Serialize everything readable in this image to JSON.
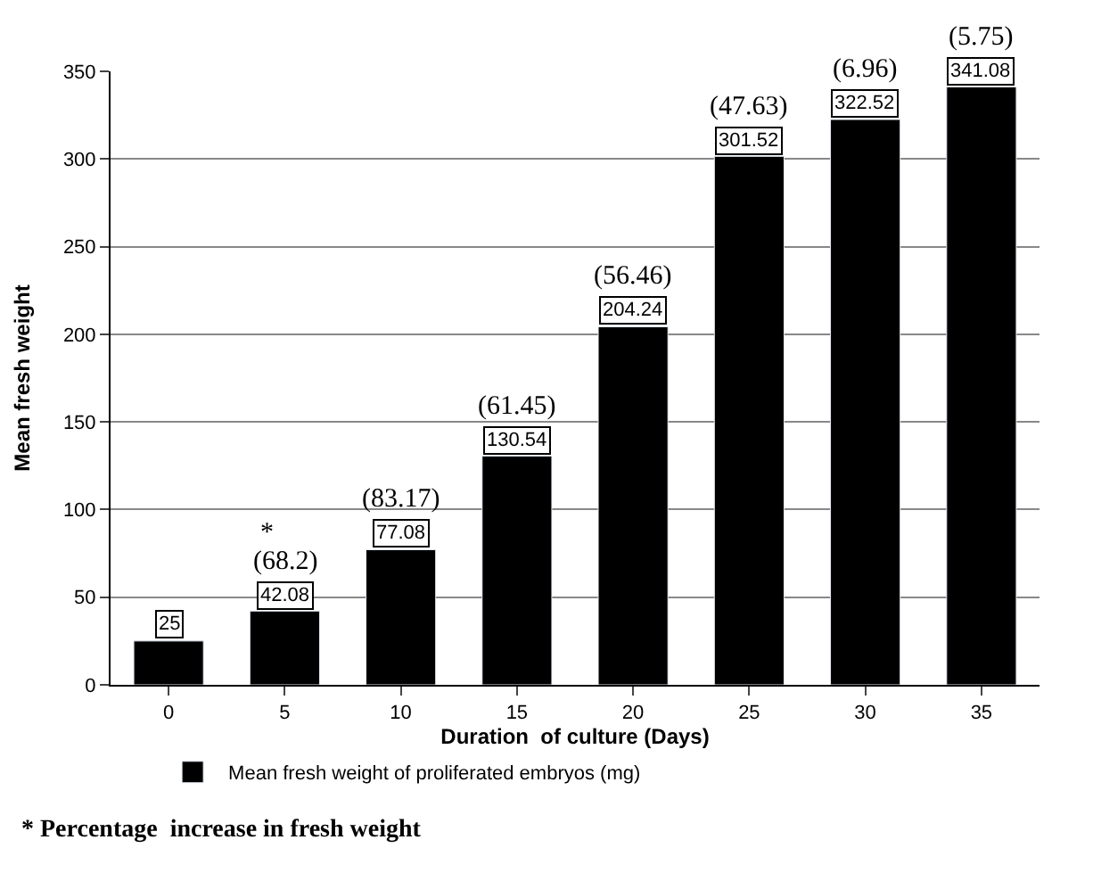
{
  "chart_data": {
    "type": "bar",
    "xlabel": "Duration  of culture (Days)",
    "ylabel": "Mean fresh weight",
    "categories": [
      "0",
      "5",
      "10",
      "15",
      "20",
      "25",
      "30",
      "35"
    ],
    "series": [
      {
        "name": "Mean fresh weight of proliferated embryos (mg)",
        "color": "#000000",
        "values": [
          25,
          42.08,
          77.08,
          130.54,
          204.24,
          301.52,
          322.52,
          341.08
        ]
      }
    ],
    "data_labels": true,
    "ylim": [
      0,
      350
    ],
    "yticks": [
      0,
      50,
      100,
      150,
      200,
      250,
      300,
      350
    ],
    "grid": "y",
    "legend": "bottom",
    "annotations": [
      {
        "text": "*",
        "x": "5",
        "y": 42.08
      },
      {
        "text": "(68.2)",
        "x": "5",
        "y": 42.08
      },
      {
        "text": "(83.17)",
        "x": "10",
        "y": 77.08
      },
      {
        "text": "(61.45)",
        "x": "15",
        "y": 130.54
      },
      {
        "text": "(56.46)",
        "x": "20",
        "y": 204.24
      },
      {
        "text": "(47.63)",
        "x": "25",
        "y": 301.52
      },
      {
        "text": "(6.96)",
        "x": "30",
        "y": 322.52
      },
      {
        "text": "(5.75)",
        "x": "35",
        "y": 341.08
      },
      "* Percentage  increase in fresh weight"
    ]
  }
}
